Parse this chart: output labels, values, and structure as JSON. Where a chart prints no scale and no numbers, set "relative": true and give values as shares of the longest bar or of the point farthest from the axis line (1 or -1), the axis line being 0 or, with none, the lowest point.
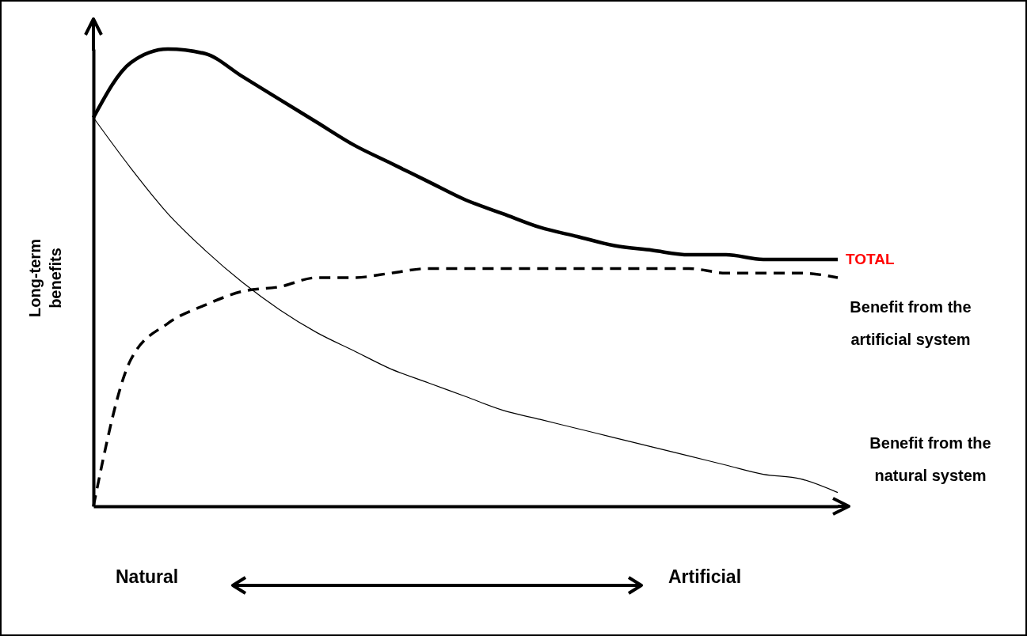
{
  "chart_data": {
    "type": "line",
    "relative": true,
    "ylabel": "Long-term benefits",
    "categories": [
      null,
      null,
      null,
      null,
      null,
      null,
      null,
      null,
      null,
      null,
      null,
      null,
      null,
      null,
      null,
      null,
      null,
      null,
      null,
      null,
      null
    ],
    "series": [
      {
        "name": "TOTAL",
        "color": "#000000",
        "line_style": "solid",
        "values": [
          0.85,
          0.97,
          1.0,
          0.99,
          0.94,
          0.89,
          0.84,
          0.79,
          0.75,
          0.71,
          0.67,
          0.64,
          0.61,
          0.59,
          0.57,
          0.56,
          0.55,
          0.55,
          0.54,
          0.54,
          0.54
        ]
      },
      {
        "name": "Benefit from the artificial system",
        "color": "#000000",
        "line_style": "dashed",
        "values": [
          0,
          0.32,
          0.4,
          0.44,
          0.47,
          0.48,
          0.5,
          0.5,
          0.51,
          0.52,
          0.52,
          0.52,
          0.52,
          0.52,
          0.52,
          0.52,
          0.52,
          0.51,
          0.51,
          0.51,
          0.5
        ]
      },
      {
        "name": "Benefit from the natural system",
        "color": "#000000",
        "line_style": "solid",
        "values": [
          0.85,
          0.74,
          0.64,
          0.56,
          0.49,
          0.43,
          0.38,
          0.34,
          0.3,
          0.27,
          0.24,
          0.21,
          0.19,
          0.17,
          0.15,
          0.13,
          0.11,
          0.09,
          0.07,
          0.06,
          0.03
        ]
      }
    ],
    "annotations": [
      "Natural",
      "Artificial"
    ]
  }
}
